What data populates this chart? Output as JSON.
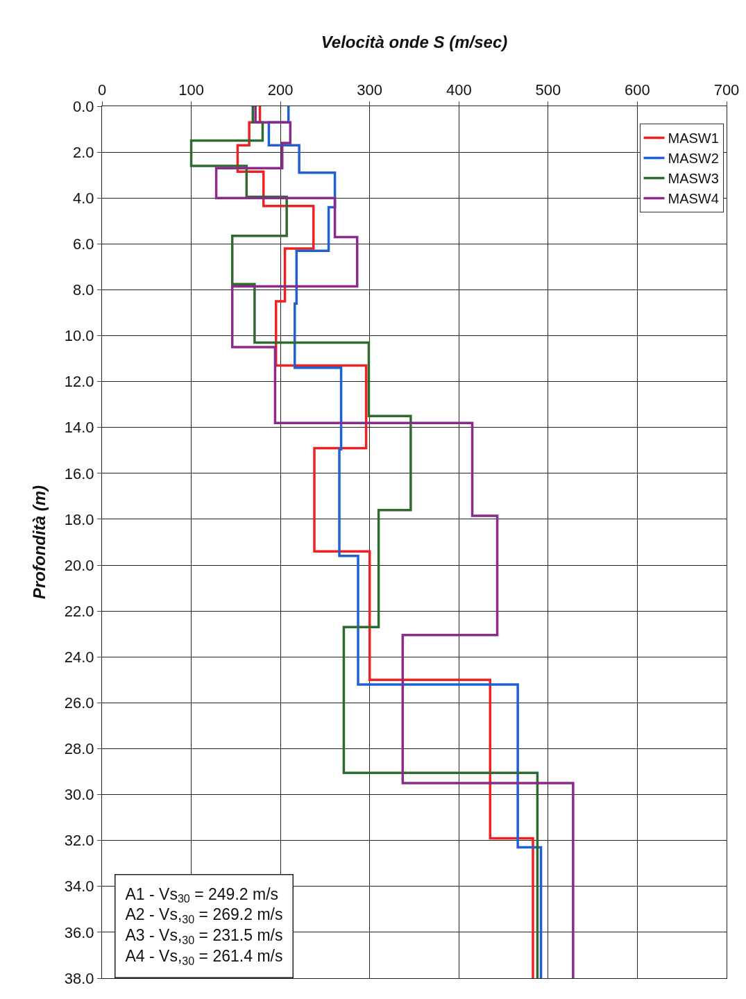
{
  "chart_data": {
    "type": "line",
    "xlabel": "Velocità onde S (m/sec)",
    "ylabel": "Profondità (m)",
    "xlim": [
      0,
      700
    ],
    "xticks": [
      0,
      100,
      200,
      300,
      400,
      500,
      600,
      700
    ],
    "ylim": [
      38,
      0
    ],
    "yticks": [
      {
        "value": 0,
        "label": "0.0"
      },
      {
        "value": 2,
        "label": "2.0"
      },
      {
        "value": 4,
        "label": "4.0"
      },
      {
        "value": 6,
        "label": "6.0"
      },
      {
        "value": 8,
        "label": "8.0"
      },
      {
        "value": 10,
        "label": "10.0"
      },
      {
        "value": 12,
        "label": "12.0"
      },
      {
        "value": 14,
        "label": "14.0"
      },
      {
        "value": 16,
        "label": "16.0"
      },
      {
        "value": 18,
        "label": "18.0"
      },
      {
        "value": 20,
        "label": "20.0"
      },
      {
        "value": 22,
        "label": "22.0"
      },
      {
        "value": 24,
        "label": "24.0"
      },
      {
        "value": 26,
        "label": "26.0"
      },
      {
        "value": 28,
        "label": "28.0"
      },
      {
        "value": 30,
        "label": "30.0"
      },
      {
        "value": 32,
        "label": "32.0"
      },
      {
        "value": 34,
        "label": "34.0"
      },
      {
        "value": 36,
        "label": "36.0"
      },
      {
        "value": 38,
        "label": "38.0"
      }
    ],
    "grid": true,
    "legend": "top right",
    "marker": "none",
    "line_style": "solid",
    "series": [
      {
        "name": "MASW1",
        "color": "#ee2222",
        "x": [
          177,
          177,
          165,
          165,
          152,
          152,
          181,
          181,
          237,
          237,
          205,
          205,
          195,
          195,
          296,
          296,
          238,
          238,
          300,
          300,
          435,
          435,
          483,
          483
        ],
        "values": [
          0,
          0.7,
          0.7,
          1.7,
          1.7,
          2.85,
          2.85,
          4.35,
          4.35,
          6.2,
          6.2,
          8.5,
          8.5,
          11.3,
          11.3,
          14.9,
          14.9,
          19.4,
          19.4,
          25,
          25,
          31.9,
          31.9,
          38
        ]
      },
      {
        "name": "MASW2",
        "color": "#2060d0",
        "x": [
          209,
          209,
          187,
          187,
          221,
          221,
          261,
          261,
          254,
          254,
          218,
          218,
          216,
          216,
          268,
          268,
          266,
          266,
          287,
          287,
          466,
          466,
          492,
          492
        ],
        "values": [
          0,
          0.7,
          0.7,
          1.7,
          1.7,
          2.9,
          2.9,
          4.4,
          4.4,
          6.3,
          6.3,
          8.6,
          8.6,
          11.4,
          11.4,
          14.95,
          14.95,
          19.6,
          19.6,
          25.2,
          25.2,
          32.3,
          32.3,
          38
        ]
      },
      {
        "name": "MASW3",
        "color": "#2e6b2e",
        "x": [
          169,
          169,
          180,
          180,
          100,
          100,
          162,
          162,
          207,
          207,
          146,
          146,
          171,
          171,
          299,
          299,
          346,
          346,
          310,
          310,
          271,
          271,
          488,
          488
        ],
        "values": [
          0,
          0.7,
          0.7,
          1.5,
          1.5,
          2.6,
          2.6,
          3.95,
          3.95,
          5.65,
          5.65,
          7.75,
          7.75,
          10.3,
          10.3,
          13.5,
          13.5,
          17.6,
          17.6,
          22.7,
          22.7,
          29.05,
          29.05,
          38
        ]
      },
      {
        "name": "MASW4",
        "color": "#8a2a8a",
        "x": [
          172,
          172,
          211,
          211,
          202,
          202,
          128,
          128,
          261,
          261,
          286,
          286,
          146,
          146,
          194,
          194,
          415,
          415,
          443,
          443,
          337,
          337,
          528,
          528
        ],
        "values": [
          0,
          0.7,
          0.7,
          1.6,
          1.6,
          2.7,
          2.7,
          4,
          4,
          5.7,
          5.7,
          7.85,
          7.85,
          10.5,
          10.5,
          13.8,
          13.8,
          17.85,
          17.85,
          23.05,
          23.05,
          29.5,
          29.5,
          38
        ]
      }
    ],
    "annotations": [
      "A1 - Vs$_{30}$ = 249.2 m/s",
      "A2 - Vs,$_{30}$ = 269.2 m/s",
      "A3 - Vs,$_{30}$ = 231.5 m/s",
      "A4 - Vs,$_{30}$ = 261.4 m/s"
    ]
  }
}
